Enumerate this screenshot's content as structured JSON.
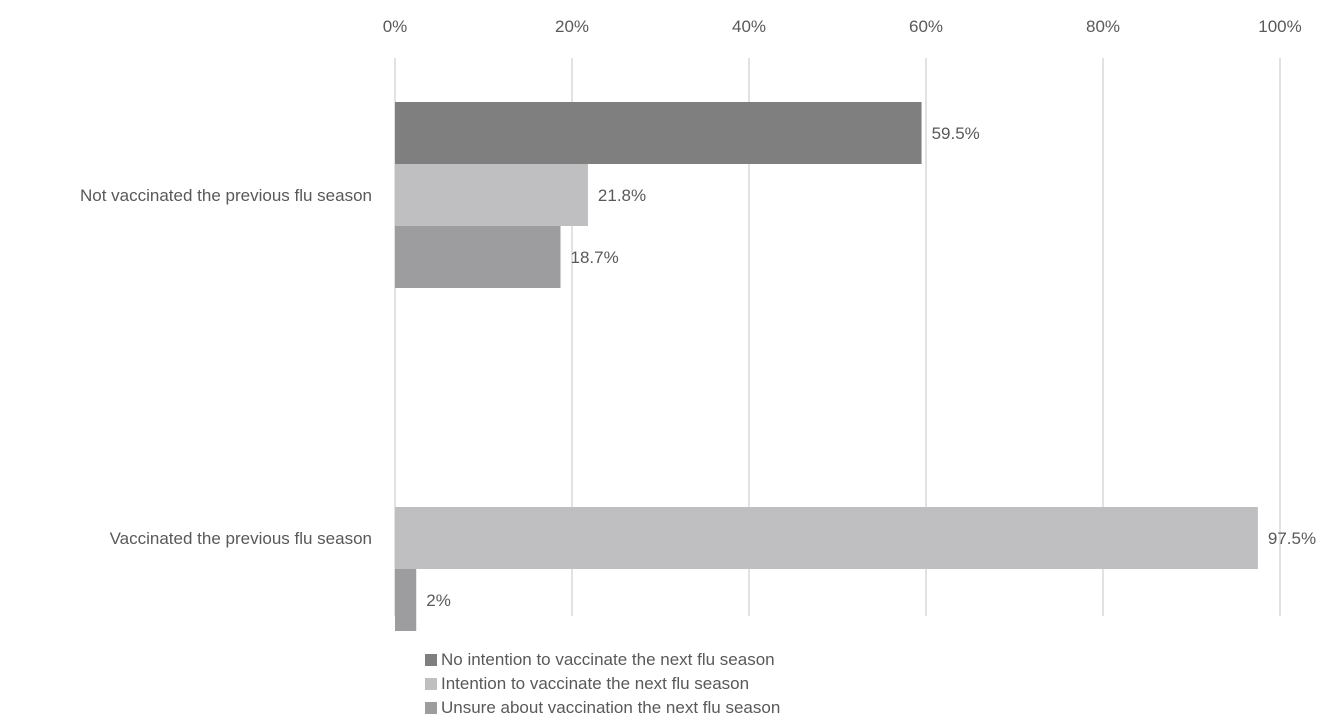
{
  "chart_data": {
    "type": "bar",
    "orientation": "horizontal",
    "categories": [
      "Not vaccinated the previous flu season",
      "Vaccinated the previous flu season"
    ],
    "series": [
      {
        "name": "No intention to vaccinate the next flu season",
        "color": "#7f7f80",
        "values": [
          59.5,
          null
        ],
        "labels": [
          "59.5%",
          ""
        ]
      },
      {
        "name": "Intention to vaccinate the next flu season",
        "color": "#bfbfc1",
        "values": [
          21.8,
          97.5
        ],
        "labels": [
          "21.8%",
          "97.5%"
        ]
      },
      {
        "name": "Unsure about vaccination the next flu season",
        "color": "#9d9da0",
        "values": [
          18.7,
          2.4
        ],
        "labels": [
          "18.7%",
          "2%"
        ]
      }
    ],
    "xaxis": {
      "min": 0,
      "max": 100,
      "ticks": [
        0,
        20,
        40,
        60,
        80,
        100
      ],
      "tick_labels": [
        "0%",
        "20%",
        "40%",
        "60%",
        "80%",
        "100%"
      ],
      "position": "top"
    },
    "grid": true,
    "gridline_color": "#d9d9d9",
    "legend_position": "bottom"
  }
}
